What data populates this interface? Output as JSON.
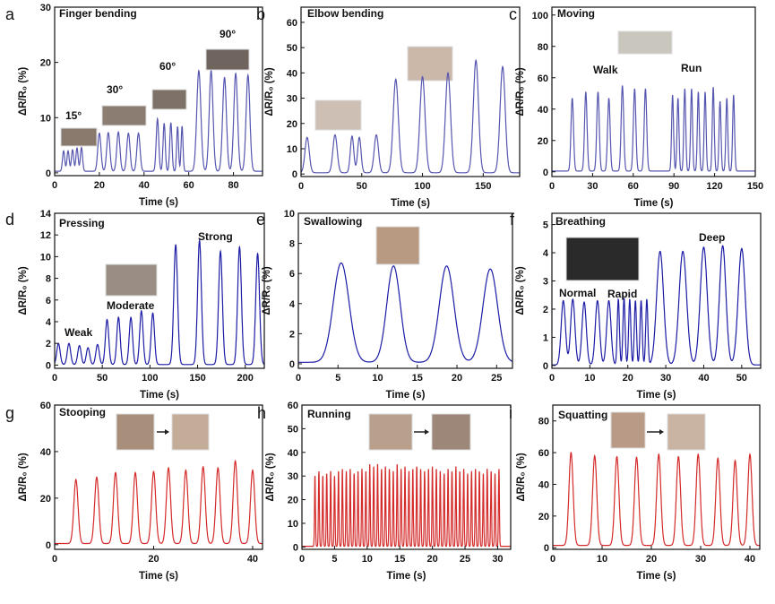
{
  "chart_data": [
    {
      "panel": "a",
      "type": "line",
      "title": "Finger bending",
      "xlabel": "Time (s)",
      "ylabel": "ΔR/R₀ (%)",
      "color": "#5656b0",
      "xlim": [
        0,
        93
      ],
      "ylim": [
        -0.5,
        30
      ],
      "xticks": [
        0,
        20,
        40,
        60,
        80
      ],
      "yticks": [
        0,
        10,
        20,
        30
      ],
      "baseline": 0.3,
      "annotations": [
        "15°",
        "30°",
        "60°",
        "90°"
      ],
      "peaks": [
        [
          4,
          4,
          0.7
        ],
        [
          6,
          4,
          0.7
        ],
        [
          8,
          4.2,
          0.7
        ],
        [
          10,
          4.5,
          0.7
        ],
        [
          12,
          4.6,
          0.7
        ],
        [
          20,
          7.2,
          1
        ],
        [
          24,
          7.3,
          1
        ],
        [
          28.5,
          7.4,
          1
        ],
        [
          33,
          7.2,
          1
        ],
        [
          37.5,
          7.2,
          1
        ],
        [
          46,
          9.8,
          0.8
        ],
        [
          49,
          9,
          0.7
        ],
        [
          52,
          9.1,
          0.7
        ],
        [
          55,
          8.4,
          0.6
        ],
        [
          57,
          8.4,
          0.6
        ],
        [
          64.5,
          18.5,
          1.3
        ],
        [
          70,
          18.5,
          1.2
        ],
        [
          76,
          17.3,
          1.2
        ],
        [
          81,
          18,
          1.2
        ],
        [
          86.5,
          17.7,
          1.2
        ]
      ]
    },
    {
      "panel": "b",
      "type": "line",
      "title": "Elbow bending",
      "xlabel": "Time (s)",
      "ylabel": "ΔR/R₀ (%)",
      "color": "#5656b0",
      "xlim": [
        0,
        180
      ],
      "ylim": [
        -1,
        66
      ],
      "xticks": [
        0,
        50,
        100,
        150
      ],
      "yticks": [
        0,
        10,
        20,
        30,
        40,
        50,
        60
      ],
      "baseline": 0.5,
      "annotations": [],
      "peaks": [
        [
          5,
          14.5,
          2.5
        ],
        [
          28,
          15.5,
          2.5
        ],
        [
          42,
          15,
          2
        ],
        [
          48,
          14.5,
          2
        ],
        [
          62,
          15.5,
          2.5
        ],
        [
          78,
          37.5,
          3
        ],
        [
          100,
          38.5,
          3
        ],
        [
          121,
          40,
          3
        ],
        [
          144,
          45,
          3
        ],
        [
          166,
          42.5,
          3
        ]
      ]
    },
    {
      "panel": "c",
      "type": "line",
      "title": "Moving",
      "xlabel": "Time (s)",
      "ylabel": "ΔR/R₀ (%)",
      "color": "#5656b0",
      "xlim": [
        0,
        150
      ],
      "ylim": [
        -3,
        105
      ],
      "xticks": [
        0,
        30,
        60,
        90,
        120,
        150
      ],
      "yticks": [
        0,
        20,
        40,
        60,
        80,
        100
      ],
      "baseline": 0.5,
      "annotations": [
        "Walk",
        "Run"
      ],
      "peaks": [
        [
          15,
          47,
          1.3
        ],
        [
          25,
          51,
          1.3
        ],
        [
          34,
          51,
          1.3
        ],
        [
          42,
          47,
          1.3
        ],
        [
          52,
          55,
          1.3
        ],
        [
          61,
          53,
          1.3
        ],
        [
          69,
          53,
          1.3
        ],
        [
          89,
          49,
          1
        ],
        [
          93,
          47,
          1
        ],
        [
          98,
          53,
          1
        ],
        [
          103,
          53,
          1
        ],
        [
          108,
          51,
          1
        ],
        [
          113,
          51,
          1
        ],
        [
          119,
          54,
          1
        ],
        [
          124,
          45,
          1
        ],
        [
          129,
          47,
          1
        ],
        [
          134,
          49,
          1
        ]
      ]
    },
    {
      "panel": "d",
      "type": "line",
      "title": "Pressing",
      "xlabel": "Time (s)",
      "ylabel": "ΔR/R₀ (%)",
      "color": "#1c1ca6",
      "xlim": [
        0,
        220
      ],
      "ylim": [
        -0.3,
        14
      ],
      "xticks": [
        0,
        50,
        100,
        150,
        200
      ],
      "yticks": [
        0,
        2,
        4,
        6,
        8,
        10,
        12,
        14
      ],
      "baseline": 0.05,
      "annotations": [
        "Weak",
        "Moderate",
        "Strong"
      ],
      "peaks": [
        [
          4,
          2,
          2.5
        ],
        [
          15,
          2,
          2.5
        ],
        [
          26,
          1.8,
          2.5
        ],
        [
          35,
          1.6,
          2.5
        ],
        [
          45,
          1.9,
          2.5
        ],
        [
          55,
          4.2,
          2.5
        ],
        [
          67,
          4.4,
          2.5
        ],
        [
          80,
          4.4,
          2.5
        ],
        [
          91,
          5,
          2.5
        ],
        [
          103,
          4.8,
          2.5
        ],
        [
          127,
          11.1,
          2.8
        ],
        [
          152,
          11.5,
          2.8
        ],
        [
          174,
          10.5,
          2.8
        ],
        [
          194,
          10.9,
          2.8
        ],
        [
          213,
          10.3,
          2.8
        ]
      ]
    },
    {
      "panel": "e",
      "type": "line",
      "title": "Swallowing",
      "xlabel": "Time (s)",
      "ylabel": "ΔR/R₀ (%)",
      "color": "#1c1ca6",
      "xlim": [
        0,
        27
      ],
      "ylim": [
        -0.3,
        10
      ],
      "xticks": [
        0,
        5,
        10,
        15,
        20,
        25
      ],
      "yticks": [
        0,
        2,
        4,
        6,
        8,
        10
      ],
      "baseline": 0.1,
      "annotations": [],
      "peaks": [
        [
          5.4,
          6.7,
          1.4
        ],
        [
          12,
          6.5,
          1.2
        ],
        [
          18.7,
          6.5,
          1.3
        ],
        [
          24.2,
          6.3,
          1.3
        ]
      ]
    },
    {
      "panel": "f",
      "type": "line",
      "title": "Breathing",
      "xlabel": "Time (s)",
      "ylabel": "ΔR/R₀ (%)",
      "color": "#1c1ca6",
      "xlim": [
        0,
        55
      ],
      "ylim": [
        -0.1,
        5.4
      ],
      "xticks": [
        0,
        10,
        20,
        30,
        40,
        50
      ],
      "yticks": [
        0,
        1,
        2,
        3,
        4,
        5
      ],
      "baseline": 0.02,
      "annotations": [
        "Normal",
        "Rapid",
        "Deep"
      ],
      "peaks": [
        [
          3,
          2.3,
          0.8
        ],
        [
          5.5,
          2.35,
          0.8
        ],
        [
          8.5,
          2.25,
          0.8
        ],
        [
          12,
          2.3,
          0.8
        ],
        [
          15,
          2.3,
          0.8
        ],
        [
          17.5,
          2.35,
          0.4
        ],
        [
          19,
          2.4,
          0.4
        ],
        [
          20.5,
          2.35,
          0.4
        ],
        [
          22,
          2.3,
          0.4
        ],
        [
          23.5,
          2.3,
          0.4
        ],
        [
          25,
          2.35,
          0.4
        ],
        [
          28.5,
          4.05,
          1.3
        ],
        [
          34.5,
          4.05,
          1.4
        ],
        [
          40,
          4.2,
          1.3
        ],
        [
          45,
          4.25,
          1.2
        ],
        [
          50,
          4.15,
          1.3
        ]
      ]
    },
    {
      "panel": "g",
      "type": "line",
      "title": "Stooping",
      "xlabel": "Time (s)",
      "ylabel": "ΔR/R₀ (%)",
      "color": "#d42a2a",
      "xlim": [
        0,
        42
      ],
      "ylim": [
        -2,
        60
      ],
      "xticks": [
        0,
        20,
        40
      ],
      "yticks": [
        0,
        20,
        40,
        60
      ],
      "baseline": 0.5,
      "annotations": [],
      "peaks": [
        [
          4.3,
          28,
          0.6
        ],
        [
          8.5,
          29,
          0.6
        ],
        [
          12.3,
          31,
          0.6
        ],
        [
          16.3,
          31,
          0.6
        ],
        [
          20,
          31.5,
          0.6
        ],
        [
          23,
          33,
          0.6
        ],
        [
          26.5,
          32,
          0.6
        ],
        [
          30,
          33.5,
          0.6
        ],
        [
          33,
          33,
          0.6
        ],
        [
          36.5,
          36,
          0.6
        ],
        [
          40,
          32,
          0.6
        ]
      ]
    },
    {
      "panel": "h",
      "type": "line",
      "title": "Running",
      "xlabel": "Time (s)",
      "ylabel": "ΔR/R₀ (%)",
      "color": "#d42a2a",
      "xlim": [
        0,
        32
      ],
      "ylim": [
        -1,
        60
      ],
      "xticks": [
        0,
        5,
        10,
        15,
        20,
        25,
        30
      ],
      "yticks": [
        0,
        10,
        20,
        30,
        40,
        50,
        60
      ],
      "baseline": 0.3,
      "annotations": [],
      "peaks": [
        [
          2.0,
          30,
          0.1
        ],
        [
          2.6,
          32,
          0.1
        ],
        [
          3.2,
          30,
          0.1
        ],
        [
          3.8,
          31,
          0.1
        ],
        [
          4.4,
          32,
          0.1
        ],
        [
          5.0,
          30,
          0.1
        ],
        [
          5.6,
          32,
          0.1
        ],
        [
          6.2,
          33,
          0.1
        ],
        [
          6.8,
          32,
          0.1
        ],
        [
          7.4,
          33,
          0.1
        ],
        [
          8.0,
          31,
          0.1
        ],
        [
          8.6,
          32,
          0.1
        ],
        [
          9.2,
          33,
          0.1
        ],
        [
          9.8,
          32,
          0.1
        ],
        [
          10.4,
          35,
          0.1
        ],
        [
          11.0,
          34,
          0.1
        ],
        [
          11.6,
          35,
          0.1
        ],
        [
          12.2,
          33,
          0.1
        ],
        [
          12.8,
          34,
          0.1
        ],
        [
          13.4,
          33,
          0.1
        ],
        [
          14.0,
          32,
          0.1
        ],
        [
          14.6,
          35,
          0.1
        ],
        [
          15.2,
          33,
          0.1
        ],
        [
          15.8,
          34,
          0.1
        ],
        [
          16.4,
          32,
          0.1
        ],
        [
          17.0,
          33,
          0.1
        ],
        [
          17.6,
          34,
          0.1
        ],
        [
          18.2,
          33,
          0.1
        ],
        [
          18.8,
          32,
          0.1
        ],
        [
          19.4,
          33,
          0.1
        ],
        [
          20.0,
          34,
          0.1
        ],
        [
          20.6,
          33,
          0.1
        ],
        [
          21.2,
          32,
          0.1
        ],
        [
          21.8,
          31,
          0.1
        ],
        [
          22.4,
          33,
          0.1
        ],
        [
          23.0,
          32,
          0.1
        ],
        [
          23.6,
          34,
          0.1
        ],
        [
          24.2,
          32,
          0.1
        ],
        [
          24.8,
          33,
          0.1
        ],
        [
          25.4,
          31,
          0.1
        ],
        [
          26.0,
          32,
          0.1
        ],
        [
          26.6,
          33,
          0.1
        ],
        [
          27.2,
          32,
          0.1
        ],
        [
          27.8,
          31,
          0.1
        ],
        [
          28.4,
          33,
          0.1
        ],
        [
          29.0,
          32,
          0.1
        ],
        [
          29.6,
          31,
          0.1
        ],
        [
          30.2,
          33,
          0.1
        ]
      ]
    },
    {
      "panel": "i",
      "type": "line",
      "title": "Squatting",
      "xlabel": "Time (s)",
      "ylabel": "ΔR/R₀ (%)",
      "color": "#d42a2a",
      "xlim": [
        0,
        42
      ],
      "ylim": [
        -1,
        90
      ],
      "xticks": [
        0,
        10,
        20,
        30,
        40
      ],
      "yticks": [
        0,
        20,
        40,
        60,
        80
      ],
      "baseline": 1.5,
      "annotations": [],
      "peaks": [
        [
          3.7,
          60,
          0.6
        ],
        [
          8.5,
          58,
          0.6
        ],
        [
          13,
          57.5,
          0.6
        ],
        [
          17,
          57,
          0.6
        ],
        [
          21.5,
          59,
          0.6
        ],
        [
          25.5,
          57.5,
          0.6
        ],
        [
          29.5,
          59,
          0.6
        ],
        [
          33.5,
          56.5,
          0.6
        ],
        [
          37,
          55,
          0.6
        ],
        [
          40,
          59,
          0.6
        ]
      ]
    }
  ]
}
